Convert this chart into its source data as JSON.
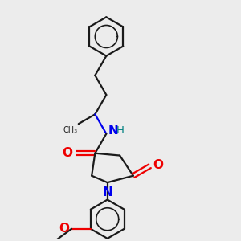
{
  "background_color": "#ececec",
  "bond_color": "#1a1a1a",
  "N_color": "#0000ee",
  "O_color": "#ee0000",
  "H_color": "#008080",
  "line_width": 1.6,
  "font_size": 9.5,
  "figsize": [
    3.0,
    3.0
  ],
  "dpi": 100,
  "xlim": [
    0.0,
    1.0
  ],
  "ylim": [
    0.0,
    1.0
  ]
}
